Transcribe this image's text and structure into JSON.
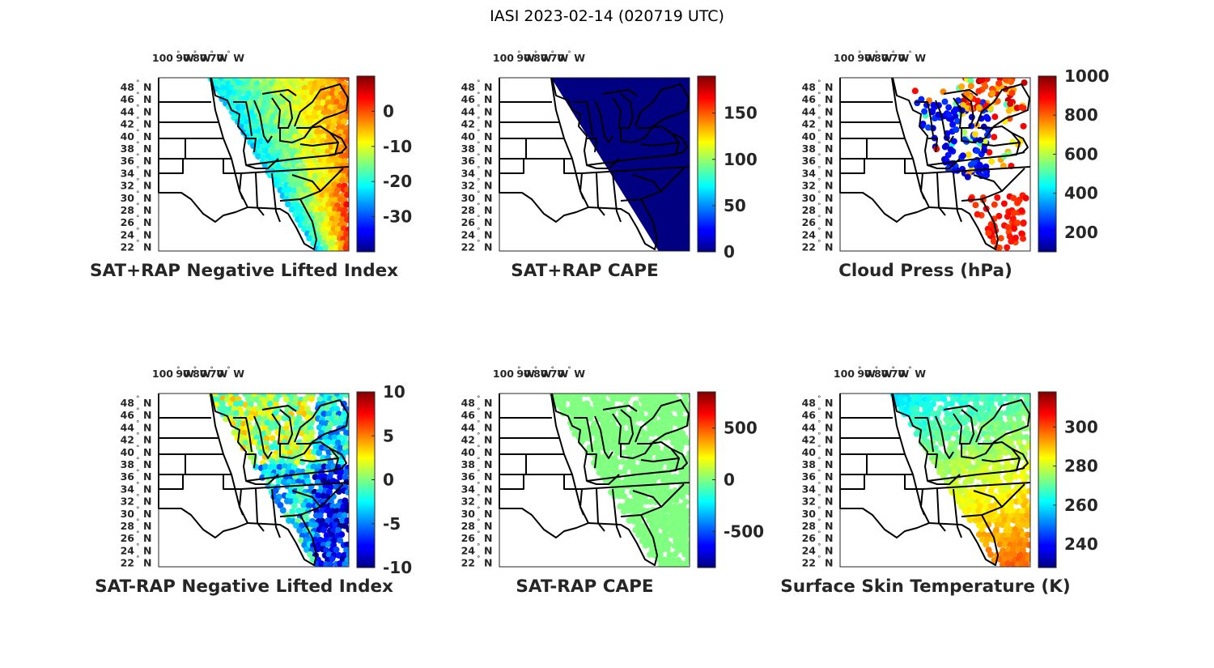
{
  "figure_title": "IASI 2023-02-14 (020719 UTC)",
  "lon_ticks": [
    "100",
    "90",
    "80",
    "70"
  ],
  "lon_suffix": "W",
  "lat_ticks": [
    "48",
    "46",
    "44",
    "42",
    "40",
    "38",
    "36",
    "34",
    "32",
    "30",
    "28",
    "26",
    "24",
    "22"
  ],
  "lat_suffix": "N",
  "degree_symbol": "°",
  "colormap": "jet",
  "panels": [
    {
      "title": "SAT+RAP Negative Lifted Index",
      "colorbar": {
        "min": -40,
        "max": 10,
        "ticks": [
          -30,
          -20,
          -10,
          0
        ],
        "tick_labels": [
          "-30",
          "-20",
          "-10",
          "0"
        ]
      },
      "coverage": "swath"
    },
    {
      "title": "SAT+RAP CAPE",
      "colorbar": {
        "min": 0,
        "max": 190,
        "ticks": [
          0,
          50,
          100,
          150
        ],
        "tick_labels": [
          "0",
          "50",
          "100",
          "150"
        ]
      },
      "coverage": "swath-uniform"
    },
    {
      "title": "Cloud Press (hPa)",
      "colorbar": {
        "min": 100,
        "max": 1000,
        "ticks": [
          200,
          400,
          600,
          800,
          1000
        ],
        "tick_labels": [
          "200",
          "400",
          "600",
          "800",
          "1000"
        ]
      },
      "coverage": "cloudy-pixels"
    },
    {
      "title": "SAT-RAP Negative Lifted Index",
      "colorbar": {
        "min": -10,
        "max": 10,
        "ticks": [
          -10,
          -5,
          0,
          5,
          10
        ],
        "tick_labels": [
          "-10",
          "-5",
          "0",
          "5",
          "10"
        ]
      },
      "coverage": "clear-pixels"
    },
    {
      "title": "SAT-RAP CAPE",
      "colorbar": {
        "min": -850,
        "max": 850,
        "ticks": [
          -500,
          0,
          500
        ],
        "tick_labels": [
          "-500",
          "0",
          "500"
        ]
      },
      "coverage": "clear-pixels-uniform"
    },
    {
      "title": "Surface Skin Temperature (K)",
      "colorbar": {
        "min": 228,
        "max": 318,
        "ticks": [
          240,
          260,
          280,
          300
        ],
        "tick_labels": [
          "240",
          "260",
          "280",
          "300"
        ]
      },
      "coverage": "clear-pixels"
    }
  ]
}
